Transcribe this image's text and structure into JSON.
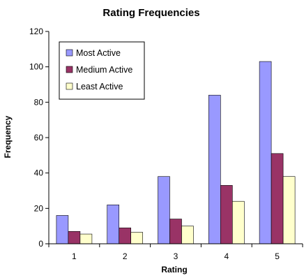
{
  "chart_data": {
    "type": "bar",
    "title": "Rating Frequencies",
    "xlabel": "Rating",
    "ylabel": "Frequency",
    "categories": [
      "1",
      "2",
      "3",
      "4",
      "5"
    ],
    "ylim": [
      0,
      120
    ],
    "yticks": [
      0,
      20,
      40,
      60,
      80,
      100,
      120
    ],
    "grid": false,
    "legend_position": "top-left",
    "series": [
      {
        "name": "Most Active",
        "color": "#9999FF",
        "values": [
          16,
          22,
          38,
          84,
          103
        ]
      },
      {
        "name": "Medium Active",
        "color": "#993366",
        "values": [
          7,
          9,
          14,
          33,
          51
        ]
      },
      {
        "name": "Least Active",
        "color": "#FFFFCC",
        "values": [
          5.5,
          6.5,
          10,
          24,
          38
        ]
      }
    ]
  }
}
